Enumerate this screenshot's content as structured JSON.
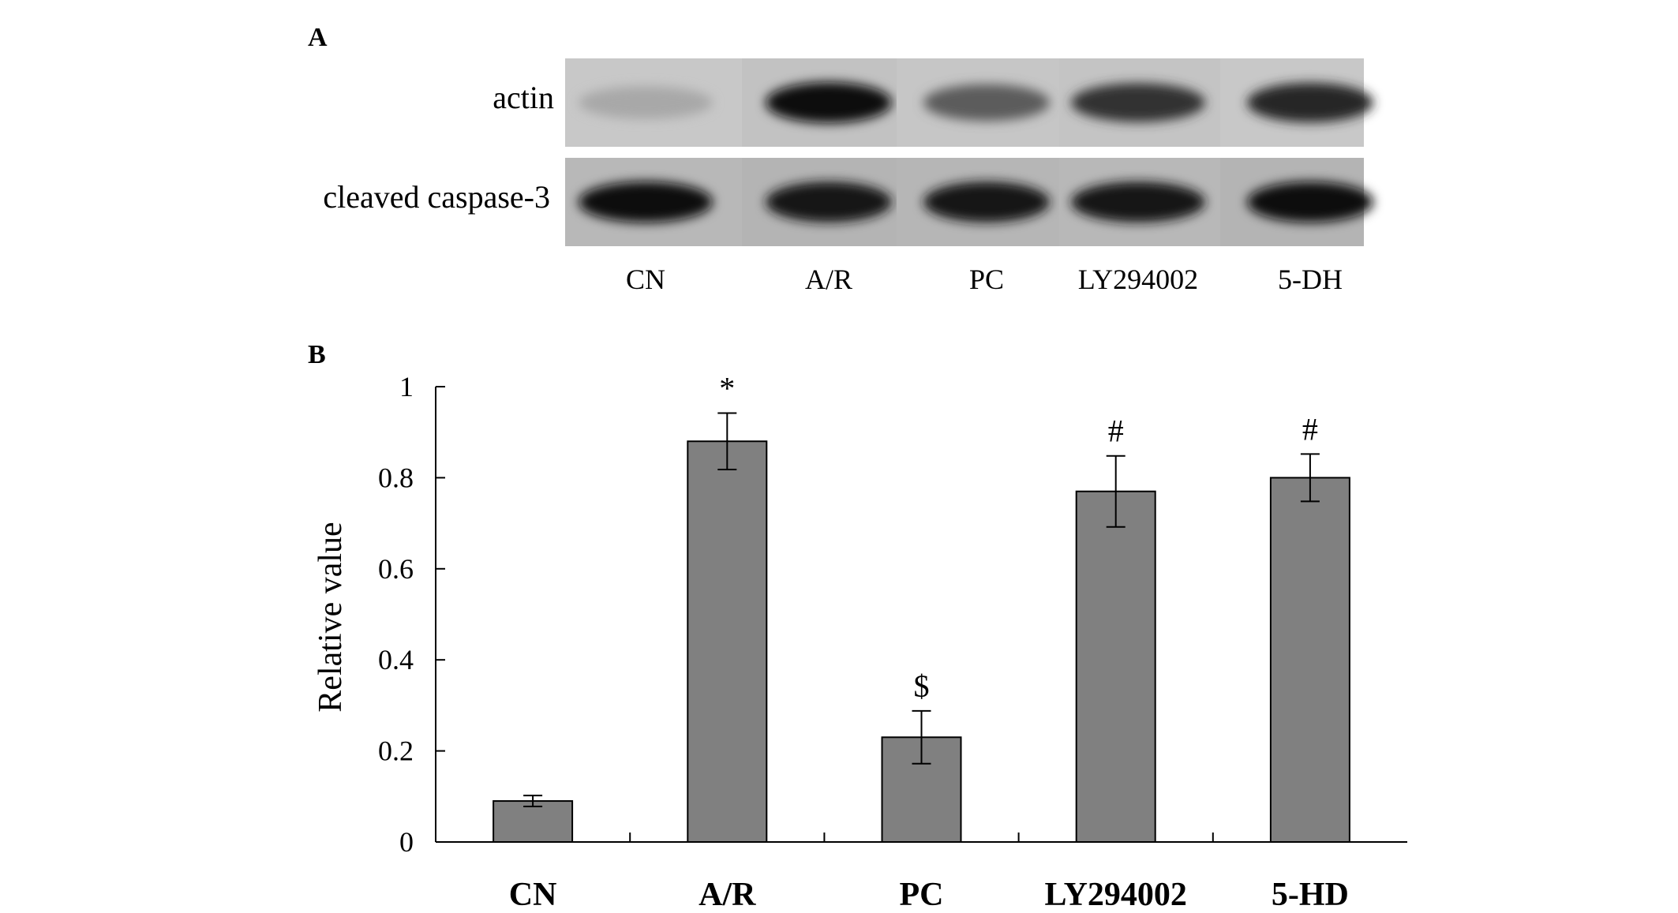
{
  "panel_a": {
    "panel_label": "A",
    "rows": [
      {
        "label": "actin",
        "intensities": [
          0.12,
          1.0,
          0.55,
          0.78,
          0.85
        ]
      },
      {
        "label": "cleaved caspase-3",
        "intensities": [
          1.0,
          0.95,
          0.95,
          0.95,
          0.98
        ]
      }
    ],
    "lanes": [
      "CN",
      "A/R",
      "PC",
      "LY294002",
      "5-DH"
    ]
  },
  "panel_b": {
    "panel_label": "B"
  },
  "chart_data": {
    "type": "bar",
    "categories": [
      "CN",
      "A/R",
      "PC",
      "LY294002",
      "5-HD"
    ],
    "series": [
      {
        "values": [
          0.09,
          0.88,
          0.23,
          0.77,
          0.8
        ],
        "errors": [
          0.012,
          0.062,
          0.058,
          0.078,
          0.052
        ]
      }
    ],
    "annotations": [
      "",
      "*",
      "$",
      "#",
      "#"
    ],
    "ylabel": "Relative value",
    "xlabel": "",
    "ylim": [
      0,
      1
    ],
    "yticks": [
      0,
      0.2,
      0.4,
      0.6,
      0.8,
      1
    ],
    "yticklabels": [
      "0",
      "0.2",
      "0.4",
      "0.6",
      "0.8",
      "1"
    ],
    "grid": false,
    "bar_color": "#808080"
  }
}
